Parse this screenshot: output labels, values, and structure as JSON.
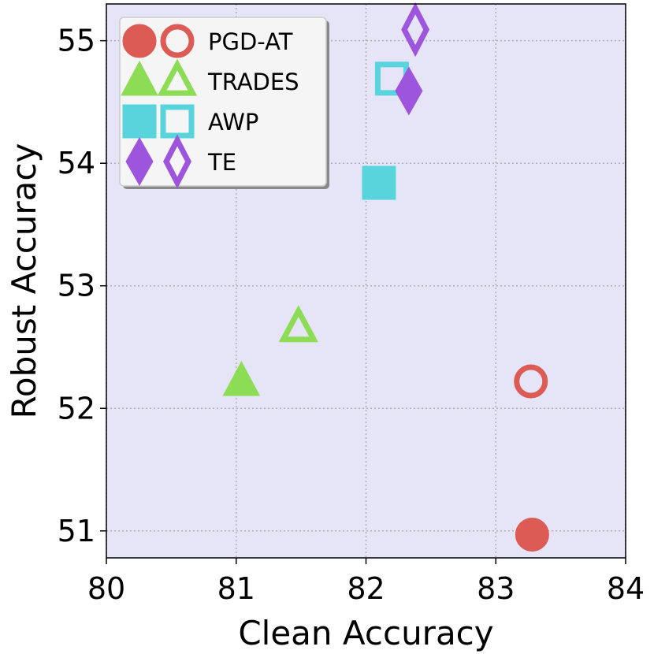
{
  "chart_data": {
    "type": "scatter",
    "title": "",
    "xlabel": "Clean Accuracy",
    "ylabel": "Robust Accuracy",
    "xlim": [
      80,
      84
    ],
    "ylim": [
      50.78,
      55.3
    ],
    "xticks": [
      "80",
      "81",
      "82",
      "83",
      "84"
    ],
    "yticks": [
      "51",
      "52",
      "53",
      "54",
      "55"
    ],
    "grid": true,
    "background_color": "#e5e5f7",
    "legend_position": "top-left",
    "series": [
      {
        "name": "PGD-AT",
        "color": "#dd5b55",
        "marker": "circle",
        "points": [
          {
            "x": 83.28,
            "y": 50.97,
            "filled": true
          },
          {
            "x": 83.27,
            "y": 52.22,
            "filled": false
          }
        ]
      },
      {
        "name": "TRADES",
        "color": "#8ddc55",
        "marker": "triangle",
        "points": [
          {
            "x": 81.04,
            "y": 52.22,
            "filled": true
          },
          {
            "x": 81.48,
            "y": 52.66,
            "filled": false
          }
        ]
      },
      {
        "name": "AWP",
        "color": "#58d4dc",
        "marker": "square",
        "points": [
          {
            "x": 82.1,
            "y": 53.84,
            "filled": true
          },
          {
            "x": 82.2,
            "y": 54.69,
            "filled": false
          }
        ]
      },
      {
        "name": "TE",
        "color": "#9e55dd",
        "marker": "diamond",
        "points": [
          {
            "x": 82.33,
            "y": 54.59,
            "filled": true
          },
          {
            "x": 82.38,
            "y": 55.09,
            "filled": false
          }
        ]
      }
    ]
  }
}
